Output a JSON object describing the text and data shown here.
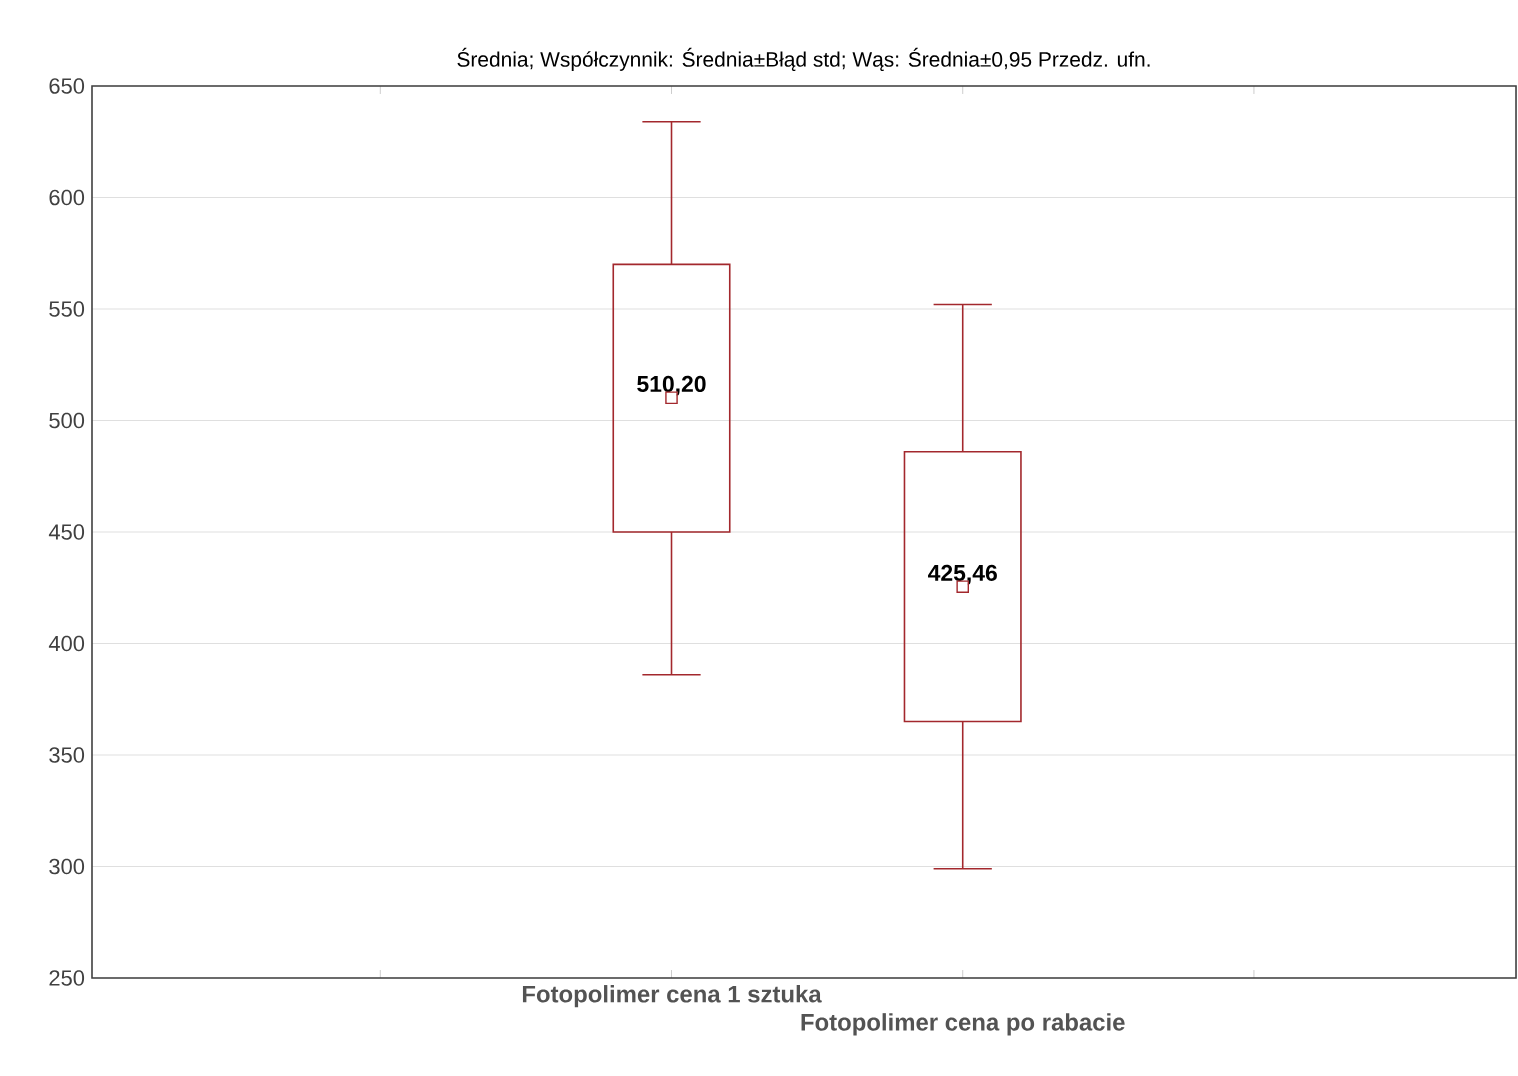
{
  "chart_data": {
    "type": "box",
    "title": "Średnia; Współczynnik: Średnia±Błąd std; Wąs: Średnia±0,95 Przedz. ufn.",
    "categories": [
      "Fotopolimer  cena  1 sztuka",
      "Fotopolimer  cena po rabacie"
    ],
    "color": "#a3282d",
    "boxes": [
      {
        "low": 386,
        "q1": 450,
        "median": 510.2,
        "q3": 570,
        "high": 634
      },
      {
        "low": 299,
        "q1": 365,
        "median": 425.46,
        "q3": 486,
        "high": 552
      }
    ],
    "annotations": [
      "510,20",
      "425,46"
    ],
    "ylim": [
      250,
      650
    ],
    "yticks": [
      250,
      300,
      350,
      400,
      450,
      500,
      550,
      600,
      650
    ],
    "grid": "y",
    "marker": "square"
  }
}
